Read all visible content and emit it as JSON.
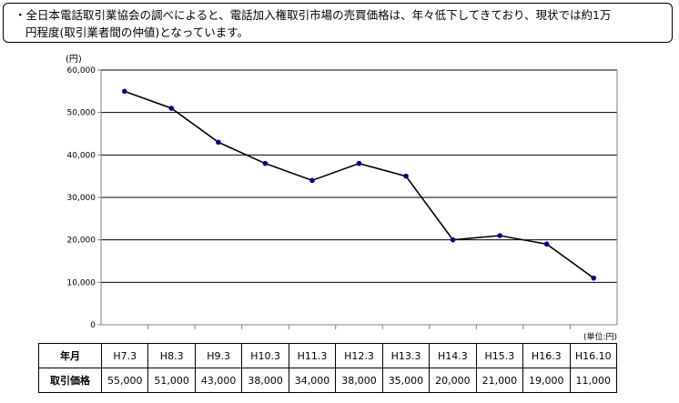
{
  "note": {
    "line1": "・全日本電話取引業協会の調べによると、電話加入権取引市場の売買価格は、年々低下してきており、現状では約1万",
    "line2": "円程度(取引業者間の仲値)となっています。"
  },
  "chart_data": {
    "type": "line",
    "categories": [
      "H7.3",
      "H8.3",
      "H9.3",
      "H10.3",
      "H11.3",
      "H12.3",
      "H13.3",
      "H14.3",
      "H15.3",
      "H16.3",
      "H16.10"
    ],
    "values": [
      55000,
      51000,
      43000,
      38000,
      34000,
      38000,
      35000,
      20000,
      21000,
      19000,
      11000
    ],
    "ylim": [
      0,
      60000
    ],
    "yticks": [
      0,
      10000,
      20000,
      30000,
      40000,
      50000,
      60000
    ],
    "ytick_labels": [
      "0",
      "10,000",
      "20,000",
      "30,000",
      "40,000",
      "50,000",
      "60,000"
    ],
    "yunit": "(円)",
    "unit_note": "(単位:円)",
    "grid": true,
    "line_color": "#000000",
    "marker_color": "#00008b"
  },
  "table": {
    "header_label": "年月",
    "row_label": "取引価格",
    "headers": [
      "H7.3",
      "H8.3",
      "H9.3",
      "H10.3",
      "H11.3",
      "H12.3",
      "H13.3",
      "H14.3",
      "H15.3",
      "H16.3",
      "H16.10"
    ],
    "values": [
      "55,000",
      "51,000",
      "43,000",
      "38,000",
      "34,000",
      "38,000",
      "35,000",
      "20,000",
      "21,000",
      "19,000",
      "11,000"
    ]
  }
}
